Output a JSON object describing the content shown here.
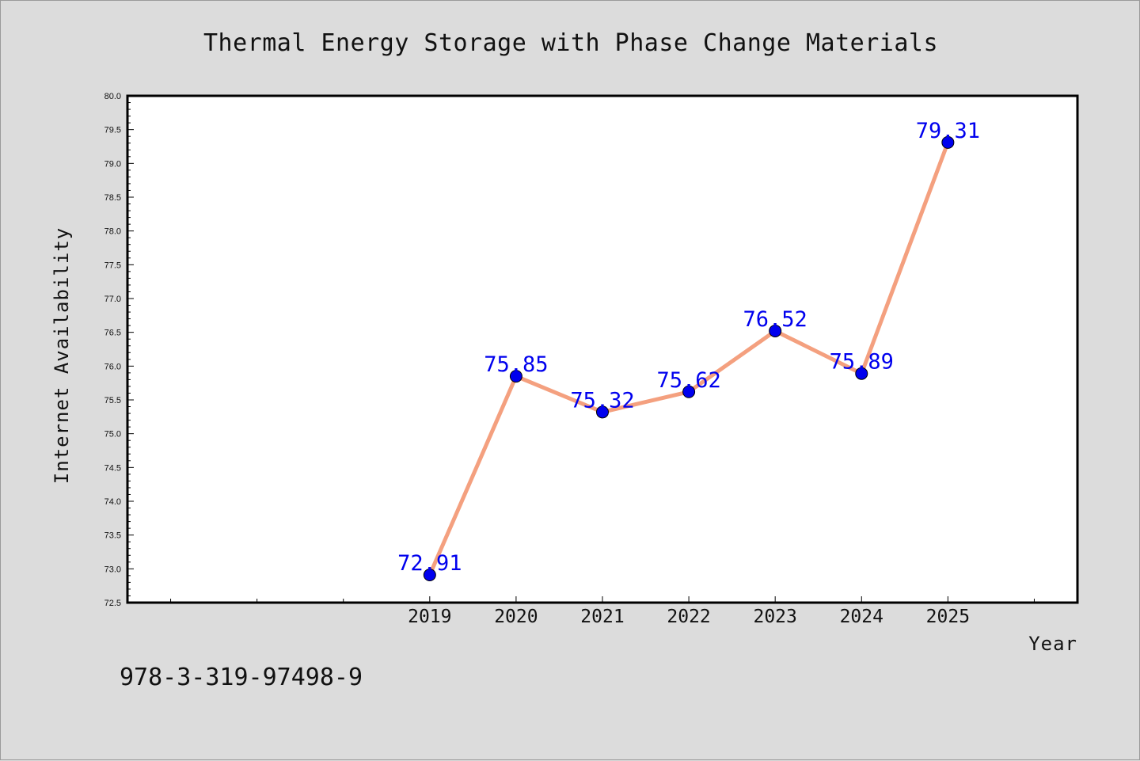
{
  "chart_data": {
    "type": "line",
    "title": "Thermal Energy Storage with Phase Change Materials",
    "xlabel": "Year",
    "ylabel": "Internet Availability",
    "x": [
      2019,
      2020,
      2021,
      2022,
      2023,
      2024,
      2025
    ],
    "x_tick_labels": [
      "2019",
      "2020",
      "2021",
      "2022",
      "2023",
      "2024",
      "2025"
    ],
    "xlim": [
      2015.5,
      2026.5
    ],
    "ylim": [
      72.5,
      80.0
    ],
    "y_ticks": [
      72.5,
      73.0,
      73.5,
      74.0,
      74.5,
      75.0,
      75.5,
      76.0,
      76.5,
      77.0,
      77.5,
      78.0,
      78.5,
      79.0,
      79.5,
      80.0
    ],
    "y_tick_labels": [
      "72.5",
      "73.0",
      "73.5",
      "74.0",
      "74.5",
      "75.0",
      "75.5",
      "76.0",
      "76.5",
      "77.0",
      "77.5",
      "78.0",
      "78.5",
      "79.0",
      "79.5",
      "80.0"
    ],
    "series": [
      {
        "values": [
          72.91,
          75.85,
          75.32,
          75.62,
          76.52,
          75.89,
          79.31
        ],
        "labels": [
          "72.91",
          "75.85",
          "75.32",
          "75.62",
          "76.52",
          "75.89",
          "79.31"
        ],
        "line_color": "#f4a07f",
        "marker_color": "#0000ee"
      }
    ],
    "grid": false,
    "background": "#dcdcdc",
    "plot_background": "#ffffff"
  },
  "footnote": "978-3-319-97498-9"
}
